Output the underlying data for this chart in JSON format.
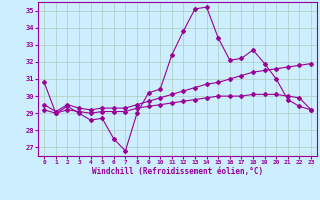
{
  "title": "",
  "xlabel": "Windchill (Refroidissement éolien,°C)",
  "ylabel": "",
  "bg_color": "#cceeff",
  "line_color": "#990099",
  "grid_color": "#aaccbb",
  "xlim": [
    -0.5,
    23.5
  ],
  "ylim": [
    26.5,
    35.5
  ],
  "yticks": [
    27,
    28,
    29,
    30,
    31,
    32,
    33,
    34,
    35
  ],
  "xticks": [
    0,
    1,
    2,
    3,
    4,
    5,
    6,
    7,
    8,
    9,
    10,
    11,
    12,
    13,
    14,
    15,
    16,
    17,
    18,
    19,
    20,
    21,
    22,
    23
  ],
  "line1_x": [
    0,
    1,
    2,
    3,
    4,
    5,
    6,
    7,
    8,
    9,
    10,
    11,
    12,
    13,
    14,
    15,
    16,
    17,
    18,
    19,
    20,
    21,
    22,
    23
  ],
  "line1_y": [
    30.8,
    29.0,
    29.4,
    29.0,
    28.6,
    28.7,
    27.5,
    26.8,
    29.0,
    30.2,
    30.4,
    32.4,
    33.8,
    35.1,
    35.2,
    33.4,
    32.1,
    32.2,
    32.7,
    31.9,
    31.0,
    29.8,
    29.4,
    29.2
  ],
  "line2_x": [
    0,
    1,
    2,
    3,
    4,
    5,
    6,
    7,
    8,
    9,
    10,
    11,
    12,
    13,
    14,
    15,
    16,
    17,
    18,
    19,
    20,
    21,
    22,
    23
  ],
  "line2_y": [
    29.5,
    29.1,
    29.5,
    29.3,
    29.2,
    29.3,
    29.3,
    29.3,
    29.5,
    29.7,
    29.9,
    30.1,
    30.3,
    30.5,
    30.7,
    30.8,
    31.0,
    31.2,
    31.4,
    31.5,
    31.6,
    31.7,
    31.8,
    31.9
  ],
  "line3_x": [
    0,
    1,
    2,
    3,
    4,
    5,
    6,
    7,
    8,
    9,
    10,
    11,
    12,
    13,
    14,
    15,
    16,
    17,
    18,
    19,
    20,
    21,
    22,
    23
  ],
  "line3_y": [
    29.2,
    29.0,
    29.2,
    29.1,
    29.0,
    29.1,
    29.1,
    29.1,
    29.3,
    29.4,
    29.5,
    29.6,
    29.7,
    29.8,
    29.9,
    30.0,
    30.0,
    30.0,
    30.1,
    30.1,
    30.1,
    30.0,
    29.9,
    29.2
  ],
  "figsize": [
    3.2,
    2.0
  ],
  "dpi": 100
}
